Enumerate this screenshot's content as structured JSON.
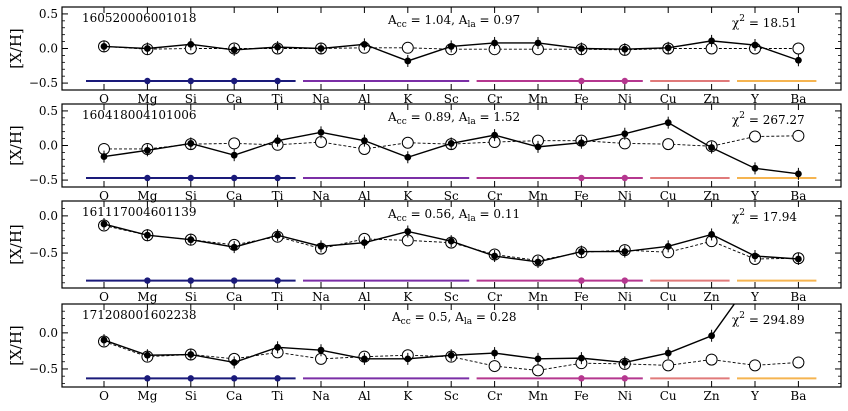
{
  "chart_data": {
    "type": "line",
    "ylabel": "[X/H]",
    "elements": [
      "O",
      "Mg",
      "Si",
      "Ca",
      "Ti",
      "Na",
      "Al",
      "K",
      "Sc",
      "Cr",
      "Mn",
      "Fe",
      "Ni",
      "Cu",
      "Zn",
      "Y",
      "Ba"
    ],
    "group_colors": [
      "#1a1a7a",
      "#7b2fa6",
      "#b5378f",
      "#e07a7a",
      "#f5b450"
    ],
    "group_bars": [
      {
        "from": "O",
        "to": "Ti",
        "color": "#1a1a7a",
        "dots": [
          "Mg",
          "Si",
          "Ca",
          "Ti"
        ]
      },
      {
        "from": "Na",
        "to": "Sc",
        "color": "#7b2fa6",
        "dots": []
      },
      {
        "from": "Cr",
        "to": "Ni",
        "color": "#b5378f",
        "dots": [
          "Fe",
          "Ni"
        ]
      },
      {
        "from": "Cu",
        "to": "Zn",
        "color": "#e07a7a",
        "dots": []
      },
      {
        "from": "Y",
        "to": "Ba",
        "color": "#f5b450",
        "dots": []
      }
    ],
    "panels": [
      {
        "star_id": "160520006001018",
        "acc_label": "A",
        "acc_sub": "cc",
        "acc_value": " = 1.04, ",
        "ala_label": "A",
        "ala_sub": "la",
        "ala_value": " = 0.97",
        "chi_prefix": "χ",
        "chi_sup": "2",
        "chi_value": " = 18.51",
        "ylim": [
          -0.6,
          0.6
        ],
        "yticks": [
          -0.5,
          0.0,
          0.5
        ],
        "ytick_labels": [
          "−0.5",
          "0.0",
          "0.5"
        ],
        "bar_y": -0.47,
        "observed": [
          0.03,
          0.0,
          0.06,
          -0.02,
          0.02,
          0.0,
          0.06,
          -0.18,
          0.03,
          0.08,
          0.08,
          0.0,
          -0.01,
          0.01,
          0.11,
          0.05,
          -0.17
        ],
        "model": [
          0.03,
          -0.01,
          0.0,
          0.0,
          0.0,
          0.0,
          0.01,
          0.01,
          -0.01,
          -0.01,
          -0.01,
          -0.01,
          -0.02,
          0.0,
          0.0,
          0.0,
          0.0
        ]
      },
      {
        "star_id": "160418004101006",
        "acc_label": "A",
        "acc_sub": "cc",
        "acc_value": " = 0.89, ",
        "ala_label": "A",
        "ala_sub": "la",
        "ala_value": " = 1.52",
        "chi_prefix": "χ",
        "chi_sup": "2",
        "chi_value": " = 267.27",
        "ylim": [
          -0.6,
          0.6
        ],
        "yticks": [
          -0.5,
          0.0,
          0.5
        ],
        "ytick_labels": [
          "−0.5",
          "0.0",
          "0.5"
        ],
        "bar_y": -0.47,
        "observed": [
          -0.16,
          -0.07,
          0.03,
          -0.14,
          0.07,
          0.19,
          0.07,
          -0.17,
          0.03,
          0.15,
          -0.02,
          0.04,
          0.17,
          0.33,
          -0.03,
          -0.33,
          -0.41
        ],
        "model": [
          -0.05,
          -0.05,
          0.02,
          0.03,
          0.01,
          0.05,
          -0.05,
          0.04,
          0.02,
          0.05,
          0.07,
          0.07,
          0.03,
          0.02,
          -0.01,
          0.13,
          0.14
        ]
      },
      {
        "star_id": "161117004601139",
        "acc_label": "A",
        "acc_sub": "cc",
        "acc_value": " = 0.56, ",
        "ala_label": "A",
        "ala_sub": "la",
        "ala_value": " = 0.11",
        "chi_prefix": "χ",
        "chi_sup": "2",
        "chi_value": " = 17.94",
        "ylim": [
          -0.97,
          0.2
        ],
        "yticks": [
          -0.5,
          0.0
        ],
        "ytick_labels": [
          "−0.5",
          "0.0"
        ],
        "bar_y": -0.87,
        "observed": [
          -0.11,
          -0.26,
          -0.32,
          -0.42,
          -0.26,
          -0.41,
          -0.36,
          -0.21,
          -0.34,
          -0.54,
          -0.62,
          -0.48,
          -0.48,
          -0.41,
          -0.25,
          -0.54,
          -0.58
        ],
        "model": [
          -0.13,
          -0.26,
          -0.32,
          -0.39,
          -0.28,
          -0.44,
          -0.31,
          -0.33,
          -0.36,
          -0.52,
          -0.6,
          -0.49,
          -0.46,
          -0.49,
          -0.34,
          -0.58,
          -0.57
        ]
      },
      {
        "star_id": "171208001602238",
        "acc_label": "A",
        "acc_sub": "cc",
        "acc_value": " = 0.5, ",
        "ala_label": "A",
        "ala_sub": "la",
        "ala_value": " = 0.28",
        "chi_prefix": "χ",
        "chi_sup": "2",
        "chi_value": " = 294.89",
        "ylim": [
          -0.75,
          0.4
        ],
        "yticks": [
          -0.5,
          0.0
        ],
        "ytick_labels": [
          "−0.5",
          "0.0"
        ],
        "bar_y": -0.63,
        "observed": [
          -0.1,
          -0.31,
          -0.3,
          -0.41,
          -0.2,
          -0.24,
          -0.36,
          -0.36,
          -0.31,
          -0.28,
          -0.36,
          -0.35,
          -0.41,
          -0.28,
          -0.04,
          0.8,
          null
        ],
        "model": [
          -0.12,
          -0.33,
          -0.3,
          -0.36,
          -0.27,
          -0.36,
          -0.33,
          -0.31,
          -0.33,
          -0.46,
          -0.52,
          -0.42,
          -0.43,
          -0.45,
          -0.37,
          -0.45,
          -0.41
        ]
      }
    ]
  }
}
